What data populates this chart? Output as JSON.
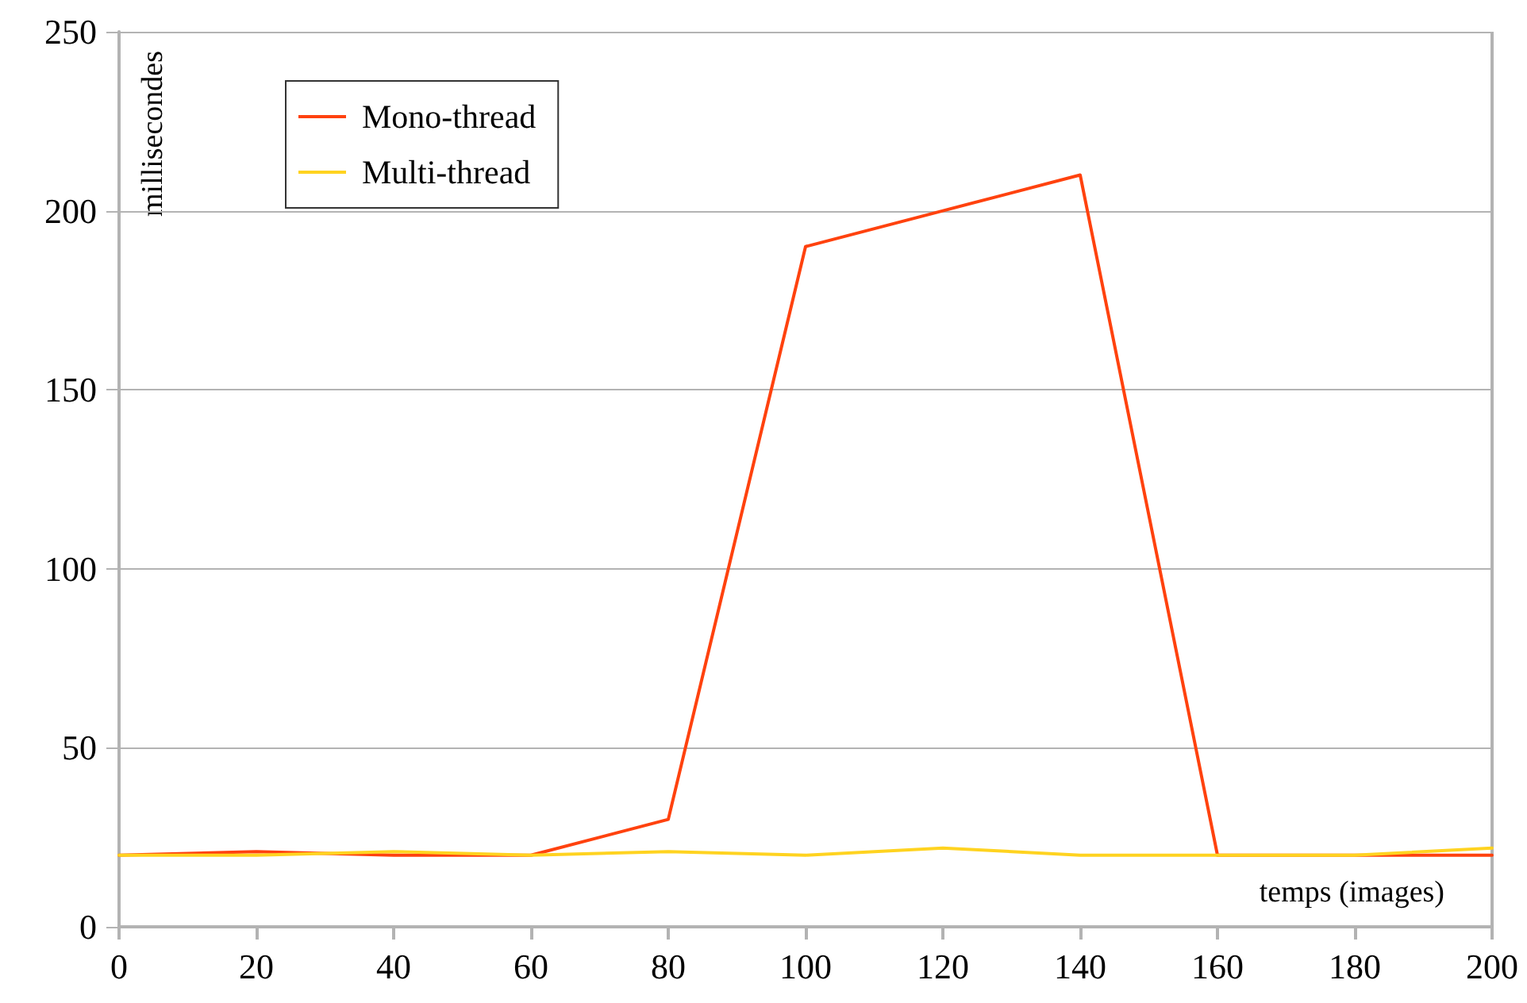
{
  "chart_data": {
    "type": "line",
    "xlabel": "temps (images)",
    "ylabel": "millisecondes",
    "x": [
      0,
      20,
      40,
      60,
      80,
      100,
      120,
      140,
      160,
      180,
      200
    ],
    "series": [
      {
        "name": "Mono-thread",
        "color": "#ff420e",
        "values": [
          20,
          21,
          20,
          20,
          30,
          190,
          200,
          210,
          20,
          20,
          20
        ]
      },
      {
        "name": "Multi-thread",
        "color": "#ffd320",
        "values": [
          20,
          20,
          21,
          20,
          21,
          20,
          22,
          20,
          20,
          20,
          22
        ]
      }
    ],
    "xlim": [
      0,
      200
    ],
    "xticks": [
      0,
      20,
      40,
      60,
      80,
      100,
      120,
      140,
      160,
      180,
      200
    ],
    "ylim": [
      0,
      250
    ],
    "yticks": [
      0,
      50,
      100,
      150,
      200,
      250
    ],
    "grid": "y",
    "legend": "top left",
    "marker": "none",
    "line_style": "solid"
  }
}
